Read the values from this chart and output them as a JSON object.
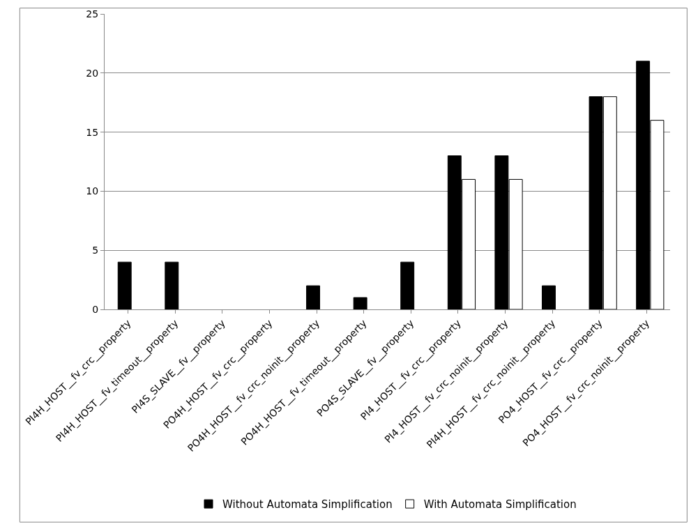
{
  "chart_data": {
    "type": "bar",
    "categories": [
      "PI4H_HOST__fv_crc__property",
      "PI4H_HOST__fv_timeout__property",
      "PI4S_SLAVE__fv__property",
      "PO4H_HOST__fv_crc__property",
      "PO4H_HOST__fv_crc_noinit__property",
      "PO4H_HOST__fv_timeout__property",
      "PO4S_SLAVE__fv__property",
      "PI4_HOST__fv_crc__property",
      "PI4_HOST__fv_crc_noinit__property",
      "PI4H_HOST__fv_crc_noinit__property",
      "PO4_HOST__fv_crc__property",
      "PO4_HOST__fv_crc_noinit__property"
    ],
    "series": [
      {
        "name": "Without Automata Simplification",
        "color": "#000000",
        "values": [
          4,
          4,
          0,
          0,
          2,
          1,
          4,
          13,
          13,
          2,
          18,
          21
        ]
      },
      {
        "name": "With Automata Simplification",
        "color": "#ffffff",
        "values": [
          0,
          0,
          0,
          0,
          0,
          0,
          0,
          11,
          11,
          0,
          18,
          16
        ]
      }
    ],
    "ylim": [
      0,
      25
    ],
    "yticks": [
      0,
      5,
      10,
      15,
      20,
      25
    ],
    "grid": "y",
    "legend": "bottom"
  }
}
